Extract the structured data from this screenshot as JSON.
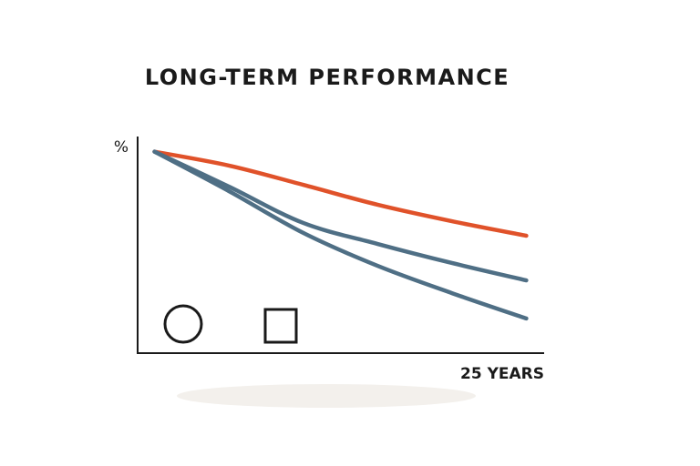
{
  "chart_data": {
    "type": "line",
    "title": "LONG-TERM PERFORMANCE",
    "y_label": "%",
    "x_label": "25 YEARS",
    "x": [
      0,
      5,
      10,
      15,
      20,
      25
    ],
    "xlim": [
      -1.2,
      26.2
    ],
    "ylim": [
      0,
      100
    ],
    "series": [
      {
        "color": "#e0522a",
        "values": [
          93,
          86.6,
          77.7,
          68.5,
          60.9,
          54.2
        ]
      },
      {
        "color": "#4f6f85",
        "values": [
          93,
          76.9,
          60.1,
          50.4,
          41.6,
          33.6
        ]
      },
      {
        "color": "#4f6f85",
        "values": [
          93,
          74.8,
          55.5,
          40.3,
          27.7,
          16.0
        ]
      }
    ]
  }
}
